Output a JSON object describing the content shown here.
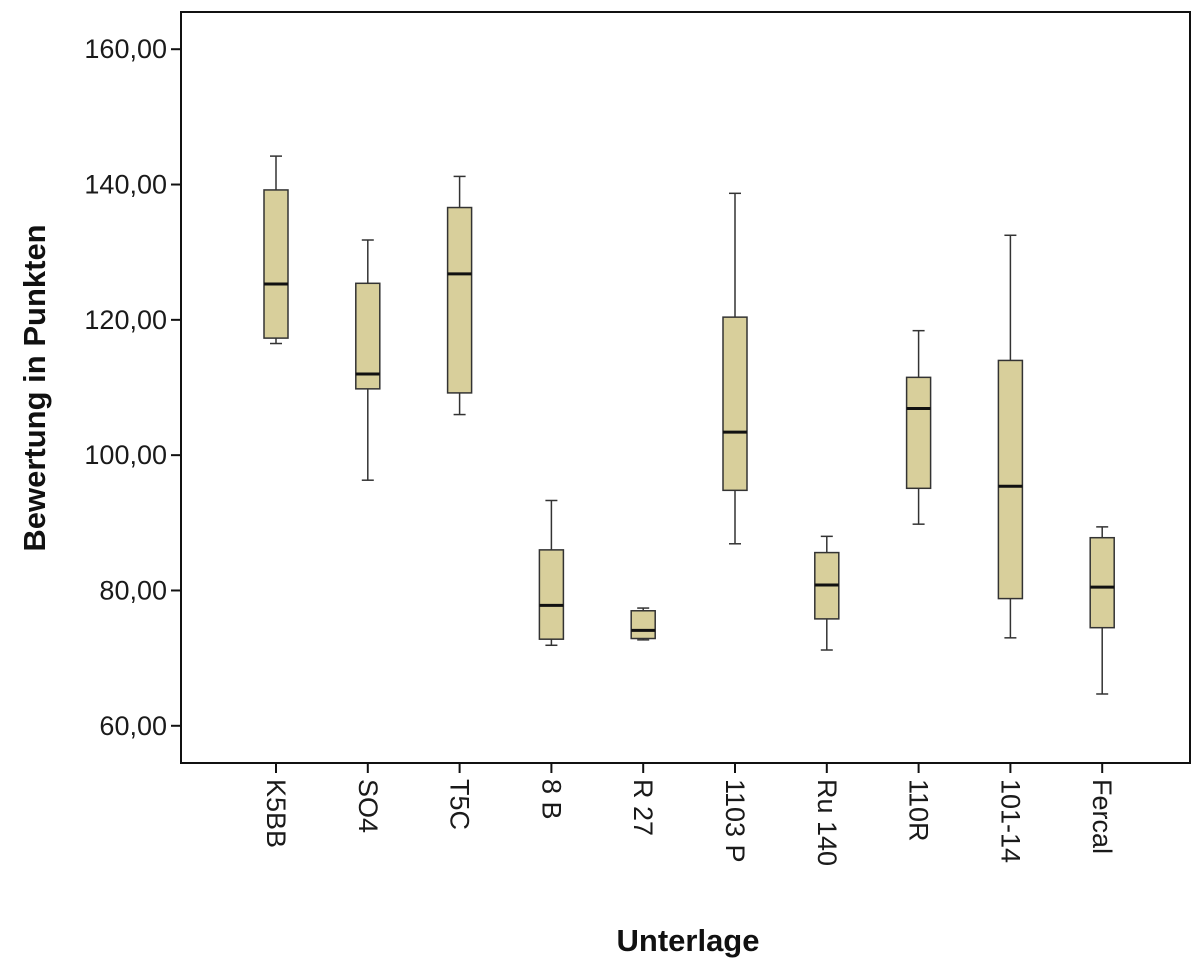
{
  "chart_data": {
    "type": "boxplot",
    "title": "",
    "xlabel": "Unterlage",
    "ylabel": "Bewertung in Punkten",
    "ylim": [
      54.5,
      165.5
    ],
    "yticks": [
      60,
      80,
      100,
      120,
      140,
      160
    ],
    "ytick_labels": [
      "60,00",
      "80,00",
      "100,00",
      "120,00",
      "140,00",
      "160,00"
    ],
    "grid": false,
    "legend": "none",
    "box_color": "#d8cf9b",
    "categories": [
      "K5BB",
      "SO4",
      "T5C",
      "8 B",
      "R 27",
      "1103 P",
      "Ru 140",
      "110R",
      "101-14",
      "Fercal"
    ],
    "boxes": [
      {
        "min": 116.5,
        "q1": 117.3,
        "median": 125.3,
        "q3": 139.2,
        "max": 144.2
      },
      {
        "min": 96.3,
        "q1": 109.8,
        "median": 112.0,
        "q3": 125.4,
        "max": 131.8
      },
      {
        "min": 106.0,
        "q1": 109.2,
        "median": 126.8,
        "q3": 136.6,
        "max": 141.2
      },
      {
        "min": 71.9,
        "q1": 72.8,
        "median": 77.8,
        "q3": 86.0,
        "max": 93.3
      },
      {
        "min": 72.7,
        "q1": 72.9,
        "median": 74.1,
        "q3": 77.0,
        "max": 77.4
      },
      {
        "min": 86.9,
        "q1": 94.8,
        "median": 103.4,
        "q3": 120.4,
        "max": 138.7
      },
      {
        "min": 71.2,
        "q1": 75.8,
        "median": 80.8,
        "q3": 85.6,
        "max": 88.0
      },
      {
        "min": 89.8,
        "q1": 95.1,
        "median": 106.9,
        "q3": 111.5,
        "max": 118.4
      },
      {
        "min": 73.0,
        "q1": 78.8,
        "median": 95.4,
        "q3": 114.0,
        "max": 132.5
      },
      {
        "min": 64.7,
        "q1": 74.5,
        "median": 80.5,
        "q3": 87.8,
        "max": 89.4
      }
    ]
  }
}
